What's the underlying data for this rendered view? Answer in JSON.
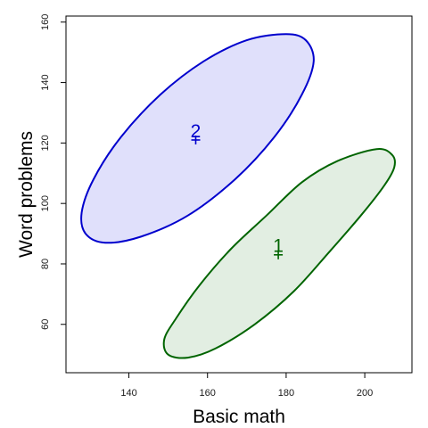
{
  "chart_data": {
    "type": "scatter",
    "title": "",
    "xlabel": "Basic math",
    "ylabel": "Word problems",
    "xlim": [
      124,
      212
    ],
    "ylim": [
      44,
      162
    ],
    "xticks": [
      140,
      160,
      180,
      200
    ],
    "yticks": [
      60,
      80,
      100,
      120,
      140,
      160
    ],
    "grid": false,
    "legend": "none",
    "series": [
      {
        "label": "1",
        "color": "#006400",
        "fill": "#e2eee2",
        "centroid": {
          "x": 178,
          "y": 83
        },
        "label_pos": {
          "x": 178,
          "y": 86
        },
        "ellipse": [
          {
            "x": 203,
            "y": 118
          },
          {
            "x": 207,
            "y": 116
          },
          {
            "x": 207.5,
            "y": 112
          },
          {
            "x": 205,
            "y": 106
          },
          {
            "x": 199,
            "y": 96
          },
          {
            "x": 191,
            "y": 84
          },
          {
            "x": 182,
            "y": 71
          },
          {
            "x": 172,
            "y": 60
          },
          {
            "x": 162,
            "y": 52
          },
          {
            "x": 155,
            "y": 49
          },
          {
            "x": 150,
            "y": 50
          },
          {
            "x": 149,
            "y": 55
          },
          {
            "x": 152,
            "y": 62
          },
          {
            "x": 158,
            "y": 73
          },
          {
            "x": 166,
            "y": 85
          },
          {
            "x": 175,
            "y": 96
          },
          {
            "x": 184,
            "y": 107
          },
          {
            "x": 193,
            "y": 114
          }
        ]
      },
      {
        "label": "2",
        "color": "#0000cd",
        "fill": "#e0e0fb",
        "centroid": {
          "x": 157,
          "y": 121
        },
        "label_pos": {
          "x": 157,
          "y": 124
        },
        "ellipse": [
          {
            "x": 180,
            "y": 156
          },
          {
            "x": 185,
            "y": 154
          },
          {
            "x": 187,
            "y": 147
          },
          {
            "x": 184,
            "y": 136
          },
          {
            "x": 177,
            "y": 122
          },
          {
            "x": 167,
            "y": 108
          },
          {
            "x": 155,
            "y": 96
          },
          {
            "x": 143,
            "y": 89
          },
          {
            "x": 134,
            "y": 87
          },
          {
            "x": 129,
            "y": 90
          },
          {
            "x": 128,
            "y": 97
          },
          {
            "x": 131,
            "y": 108
          },
          {
            "x": 138,
            "y": 122
          },
          {
            "x": 148,
            "y": 136
          },
          {
            "x": 159,
            "y": 147
          },
          {
            "x": 170,
            "y": 154
          }
        ]
      }
    ]
  }
}
